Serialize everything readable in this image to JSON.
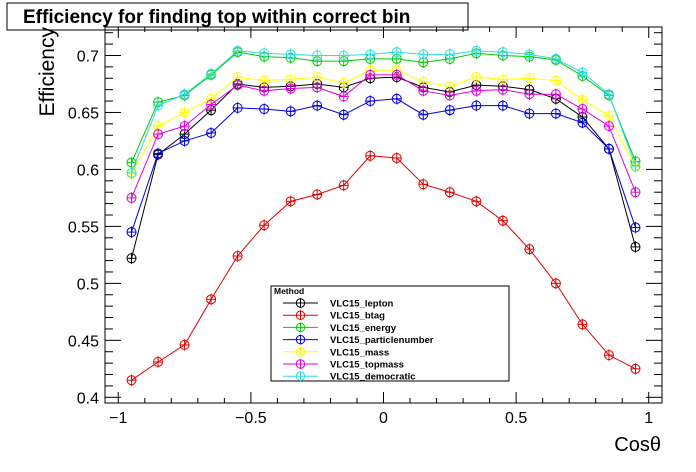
{
  "chart_data": {
    "type": "line",
    "title": "Efficiency for finding top within correct bin",
    "xlabel": "Cosθ",
    "ylabel": "Efficiency",
    "xlim": [
      -1.05,
      1.05
    ],
    "ylim": [
      0.395,
      0.725
    ],
    "x_ticks": [
      -1,
      -0.5,
      0,
      0.5,
      1
    ],
    "x_tick_labels": [
      "−1",
      "−0.5",
      "0",
      "0.5",
      "1"
    ],
    "y_ticks": [
      0.4,
      0.45,
      0.5,
      0.55,
      0.6,
      0.65,
      0.7
    ],
    "y_tick_labels": [
      "0.4",
      "0.45",
      "0.5",
      "0.55",
      "0.6",
      "0.65",
      "0.7"
    ],
    "grid": false,
    "legend_title": "Method",
    "legend_position": "bottom-center",
    "x": [
      -0.95,
      -0.85,
      -0.75,
      -0.65,
      -0.55,
      -0.45,
      -0.35,
      -0.25,
      -0.15,
      -0.05,
      0.05,
      0.15,
      0.25,
      0.35,
      0.45,
      0.55,
      0.65,
      0.75,
      0.85,
      0.95
    ],
    "series": [
      {
        "name": "VLC15_lepton",
        "color": "#000000",
        "values": [
          0.522,
          0.613,
          0.631,
          0.652,
          0.675,
          0.672,
          0.673,
          0.675,
          0.672,
          0.68,
          0.681,
          0.672,
          0.668,
          0.674,
          0.673,
          0.67,
          0.662,
          0.646,
          0.618,
          0.532
        ],
        "errors": [
          0.005,
          0.005,
          0.005,
          0.005,
          0.005,
          0.005,
          0.005,
          0.005,
          0.005,
          0.005,
          0.005,
          0.005,
          0.005,
          0.005,
          0.005,
          0.005,
          0.005,
          0.005,
          0.005,
          0.005
        ]
      },
      {
        "name": "VLC15_btag",
        "color": "#e00000",
        "values": [
          0.415,
          0.431,
          0.446,
          0.486,
          0.524,
          0.551,
          0.572,
          0.578,
          0.586,
          0.612,
          0.61,
          0.587,
          0.58,
          0.572,
          0.555,
          0.53,
          0.5,
          0.464,
          0.437,
          0.425
        ],
        "errors": [
          0.005,
          0.005,
          0.005,
          0.005,
          0.005,
          0.005,
          0.005,
          0.005,
          0.005,
          0.005,
          0.005,
          0.005,
          0.005,
          0.005,
          0.005,
          0.005,
          0.005,
          0.005,
          0.005,
          0.005
        ]
      },
      {
        "name": "VLC15_energy",
        "color": "#00cc00",
        "values": [
          0.606,
          0.659,
          0.665,
          0.683,
          0.703,
          0.699,
          0.698,
          0.695,
          0.695,
          0.697,
          0.697,
          0.694,
          0.697,
          0.702,
          0.7,
          0.699,
          0.696,
          0.682,
          0.665,
          0.607
        ],
        "errors": [
          0.005,
          0.005,
          0.005,
          0.005,
          0.005,
          0.005,
          0.005,
          0.005,
          0.005,
          0.005,
          0.005,
          0.005,
          0.005,
          0.005,
          0.005,
          0.005,
          0.005,
          0.005,
          0.005,
          0.005
        ]
      },
      {
        "name": "VLC15_particlenumber",
        "color": "#0000dd",
        "values": [
          0.545,
          0.614,
          0.625,
          0.632,
          0.654,
          0.653,
          0.651,
          0.656,
          0.648,
          0.66,
          0.662,
          0.648,
          0.652,
          0.656,
          0.656,
          0.649,
          0.649,
          0.641,
          0.618,
          0.549
        ],
        "errors": [
          0.005,
          0.005,
          0.005,
          0.005,
          0.005,
          0.005,
          0.005,
          0.005,
          0.005,
          0.005,
          0.005,
          0.005,
          0.005,
          0.005,
          0.005,
          0.005,
          0.005,
          0.005,
          0.005,
          0.005
        ]
      },
      {
        "name": "VLC15_mass",
        "color": "#ffff00",
        "values": [
          0.596,
          0.638,
          0.65,
          0.662,
          0.681,
          0.678,
          0.679,
          0.681,
          0.676,
          0.687,
          0.687,
          0.677,
          0.673,
          0.681,
          0.679,
          0.68,
          0.678,
          0.661,
          0.647,
          0.602
        ],
        "errors": [
          0.005,
          0.005,
          0.005,
          0.005,
          0.005,
          0.005,
          0.005,
          0.005,
          0.005,
          0.005,
          0.005,
          0.005,
          0.005,
          0.005,
          0.005,
          0.005,
          0.005,
          0.005,
          0.005,
          0.005
        ]
      },
      {
        "name": "VLC15_topmass",
        "color": "#e000e0",
        "values": [
          0.575,
          0.631,
          0.638,
          0.657,
          0.674,
          0.669,
          0.671,
          0.672,
          0.664,
          0.683,
          0.683,
          0.669,
          0.665,
          0.669,
          0.67,
          0.666,
          0.666,
          0.653,
          0.638,
          0.58
        ],
        "errors": [
          0.005,
          0.005,
          0.005,
          0.005,
          0.005,
          0.005,
          0.005,
          0.005,
          0.005,
          0.005,
          0.005,
          0.005,
          0.005,
          0.005,
          0.005,
          0.005,
          0.005,
          0.005,
          0.005,
          0.005
        ]
      },
      {
        "name": "VLC15_democratic",
        "color": "#33dddd",
        "values": [
          0.597,
          0.656,
          0.666,
          0.684,
          0.704,
          0.702,
          0.701,
          0.7,
          0.7,
          0.701,
          0.703,
          0.701,
          0.701,
          0.704,
          0.703,
          0.701,
          0.697,
          0.685,
          0.666,
          0.603
        ],
        "errors": [
          0.005,
          0.005,
          0.005,
          0.005,
          0.005,
          0.005,
          0.005,
          0.005,
          0.005,
          0.005,
          0.005,
          0.005,
          0.005,
          0.005,
          0.005,
          0.005,
          0.005,
          0.005,
          0.005,
          0.005
        ]
      }
    ]
  }
}
